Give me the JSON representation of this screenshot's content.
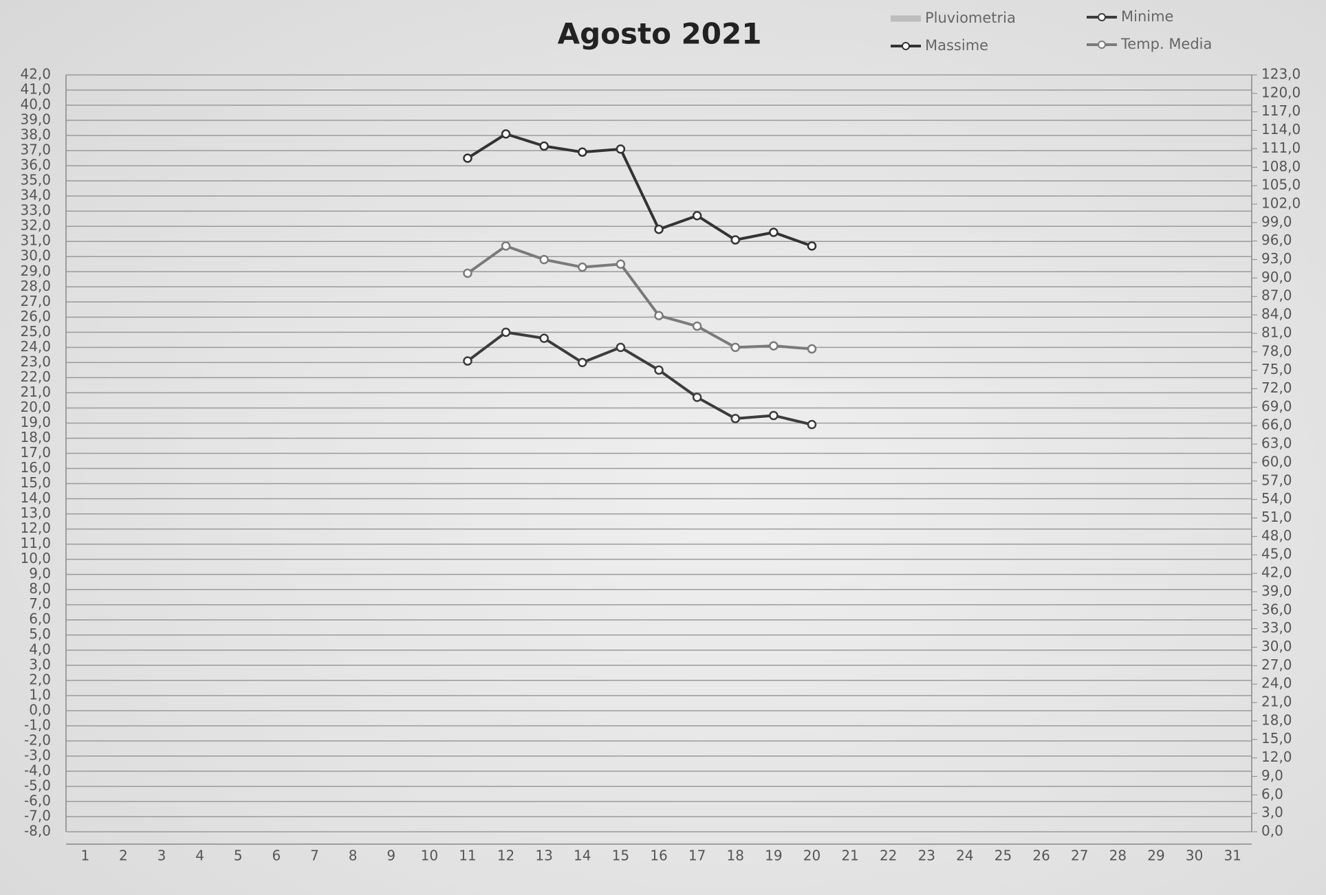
{
  "chart_data": {
    "type": "line",
    "title": "Agosto 2021",
    "categories": [
      1,
      2,
      3,
      4,
      5,
      6,
      7,
      8,
      9,
      10,
      11,
      12,
      13,
      14,
      15,
      16,
      17,
      18,
      19,
      20,
      21,
      22,
      23,
      24,
      25,
      26,
      27,
      28,
      29,
      30,
      31
    ],
    "series": [
      {
        "name": "Pluviometria",
        "color": "#bdbdbd",
        "axis": "y2",
        "values": [
          null,
          null,
          null,
          null,
          null,
          null,
          null,
          null,
          null,
          null,
          null,
          null,
          null,
          null,
          null,
          null,
          null,
          null,
          null,
          null,
          null,
          null,
          null,
          null,
          null,
          null,
          null,
          null,
          null,
          null,
          null
        ]
      },
      {
        "name": "Minime",
        "color": "#3c3c3c",
        "values": [
          null,
          null,
          null,
          null,
          null,
          null,
          null,
          null,
          null,
          null,
          23.1,
          25.0,
          24.6,
          23.0,
          24.0,
          22.5,
          20.7,
          19.3,
          19.5,
          18.9,
          null,
          null,
          null,
          null,
          null,
          null,
          null,
          null,
          null,
          null,
          null
        ]
      },
      {
        "name": "Massime",
        "color": "#333333",
        "values": [
          null,
          null,
          null,
          null,
          null,
          null,
          null,
          null,
          null,
          null,
          36.5,
          38.1,
          37.3,
          36.9,
          37.1,
          31.8,
          32.7,
          31.1,
          31.6,
          30.7,
          null,
          null,
          null,
          null,
          null,
          null,
          null,
          null,
          null,
          null,
          null
        ]
      },
      {
        "name": "Temp. Media",
        "color": "#7a7a7a",
        "values": [
          null,
          null,
          null,
          null,
          null,
          null,
          null,
          null,
          null,
          null,
          28.9,
          30.7,
          29.8,
          29.3,
          29.5,
          26.1,
          25.4,
          24.0,
          24.1,
          23.9,
          null,
          null,
          null,
          null,
          null,
          null,
          null,
          null,
          null,
          null,
          null
        ]
      }
    ],
    "ylim": [
      -8,
      42
    ],
    "yticks": [
      {
        "value": 42,
        "label": "42,0"
      },
      {
        "value": 41,
        "label": "41,0"
      },
      {
        "value": 40,
        "label": "40,0"
      },
      {
        "value": 39,
        "label": "39,0"
      },
      {
        "value": 38,
        "label": "38,0"
      },
      {
        "value": 37,
        "label": "37,0"
      },
      {
        "value": 36,
        "label": "36,0"
      },
      {
        "value": 35,
        "label": "35,0"
      },
      {
        "value": 34,
        "label": "34,0"
      },
      {
        "value": 33,
        "label": "33,0"
      },
      {
        "value": 32,
        "label": "32,0"
      },
      {
        "value": 31,
        "label": "31,0"
      },
      {
        "value": 30,
        "label": "30,0"
      },
      {
        "value": 29,
        "label": "29,0"
      },
      {
        "value": 28,
        "label": "28,0"
      },
      {
        "value": 27,
        "label": "27,0"
      },
      {
        "value": 26,
        "label": "26,0"
      },
      {
        "value": 25,
        "label": "25,0"
      },
      {
        "value": 24,
        "label": "24,0"
      },
      {
        "value": 23,
        "label": "23,0"
      },
      {
        "value": 22,
        "label": "22,0"
      },
      {
        "value": 21,
        "label": "21,0"
      },
      {
        "value": 20,
        "label": "20,0"
      },
      {
        "value": 19,
        "label": "19,0"
      },
      {
        "value": 18,
        "label": "18,0"
      },
      {
        "value": 17,
        "label": "17,0"
      },
      {
        "value": 16,
        "label": "16,0"
      },
      {
        "value": 15,
        "label": "15,0"
      },
      {
        "value": 14,
        "label": "14,0"
      },
      {
        "value": 13,
        "label": "13,0"
      },
      {
        "value": 12,
        "label": "12,0"
      },
      {
        "value": 11,
        "label": "11,0"
      },
      {
        "value": 10,
        "label": "10,0"
      },
      {
        "value": 9,
        "label": "9,0"
      },
      {
        "value": 8,
        "label": "8,0"
      },
      {
        "value": 7,
        "label": "7,0"
      },
      {
        "value": 6,
        "label": "6,0"
      },
      {
        "value": 5,
        "label": "5,0"
      },
      {
        "value": 4,
        "label": "4,0"
      },
      {
        "value": 3,
        "label": "3,0"
      },
      {
        "value": 2,
        "label": "2,0"
      },
      {
        "value": 1,
        "label": "1,0"
      },
      {
        "value": 0,
        "label": "0,0"
      },
      {
        "value": -1,
        "label": "-1,0"
      },
      {
        "value": -2,
        "label": "-2,0"
      },
      {
        "value": -3,
        "label": "-3,0"
      },
      {
        "value": -4,
        "label": "-4,0"
      },
      {
        "value": -5,
        "label": "-5,0"
      },
      {
        "value": -6,
        "label": "-6,0"
      },
      {
        "value": -7,
        "label": "-7,0"
      },
      {
        "value": -8,
        "label": "-8,0"
      }
    ],
    "y2lim": [
      0,
      123
    ],
    "y2ticks": [
      {
        "value": 123,
        "label": "123,0"
      },
      {
        "value": 120,
        "label": "120,0"
      },
      {
        "value": 117,
        "label": "117,0"
      },
      {
        "value": 114,
        "label": "114,0"
      },
      {
        "value": 111,
        "label": "111,0"
      },
      {
        "value": 108,
        "label": "108,0"
      },
      {
        "value": 105,
        "label": "105,0"
      },
      {
        "value": 102,
        "label": "102,0"
      },
      {
        "value": 99,
        "label": "99,0"
      },
      {
        "value": 96,
        "label": "96,0"
      },
      {
        "value": 93,
        "label": "93,0"
      },
      {
        "value": 90,
        "label": "90,0"
      },
      {
        "value": 87,
        "label": "87,0"
      },
      {
        "value": 84,
        "label": "84,0"
      },
      {
        "value": 81,
        "label": "81,0"
      },
      {
        "value": 78,
        "label": "78,0"
      },
      {
        "value": 75,
        "label": "75,0"
      },
      {
        "value": 72,
        "label": "72,0"
      },
      {
        "value": 69,
        "label": "69,0"
      },
      {
        "value": 66,
        "label": "66,0"
      },
      {
        "value": 63,
        "label": "63,0"
      },
      {
        "value": 60,
        "label": "60,0"
      },
      {
        "value": 57,
        "label": "57,0"
      },
      {
        "value": 54,
        "label": "54,0"
      },
      {
        "value": 51,
        "label": "51,0"
      },
      {
        "value": 48,
        "label": "48,0"
      },
      {
        "value": 45,
        "label": "45,0"
      },
      {
        "value": 42,
        "label": "42,0"
      },
      {
        "value": 39,
        "label": "39,0"
      },
      {
        "value": 36,
        "label": "36,0"
      },
      {
        "value": 33,
        "label": "33,0"
      },
      {
        "value": 30,
        "label": "30,0"
      },
      {
        "value": 27,
        "label": "27,0"
      },
      {
        "value": 24,
        "label": "24,0"
      },
      {
        "value": 21,
        "label": "21,0"
      },
      {
        "value": 18,
        "label": "18,0"
      },
      {
        "value": 15,
        "label": "15,0"
      },
      {
        "value": 12,
        "label": "12,0"
      },
      {
        "value": 9,
        "label": "9,0"
      },
      {
        "value": 6,
        "label": "6,0"
      },
      {
        "value": 3,
        "label": "3,0"
      },
      {
        "value": 0,
        "label": "0,0"
      }
    ],
    "grid": true,
    "legend": "top-right"
  }
}
